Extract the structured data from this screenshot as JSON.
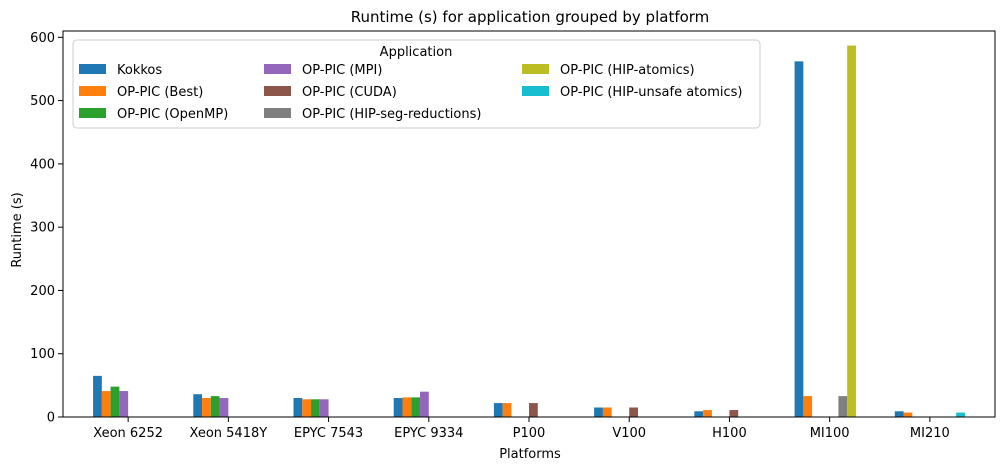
{
  "chart_data": {
    "type": "bar",
    "title": "Runtime (s) for application grouped by platform",
    "xlabel": "Platforms",
    "ylabel": "Runtime (s)",
    "ylim": [
      0,
      610
    ],
    "yticks": [
      0,
      100,
      200,
      300,
      400,
      500,
      600
    ],
    "grid": false,
    "legend_title": "Application",
    "legend_position": "top-left",
    "categories": [
      "Xeon 6252",
      "Xeon 5418Y",
      "EPYC 7543",
      "EPYC 9334",
      "P100",
      "V100",
      "H100",
      "MI100",
      "MI210"
    ],
    "series": [
      {
        "name": "Kokkos",
        "color": "#1f77b4",
        "values": [
          65,
          36,
          30,
          30,
          22,
          15,
          9,
          562,
          9
        ]
      },
      {
        "name": "OP-PIC (Best)",
        "color": "#ff7f0e",
        "values": [
          41,
          30,
          28,
          31,
          22,
          15,
          11,
          33,
          7
        ]
      },
      {
        "name": "OP-PIC (OpenMP)",
        "color": "#2ca02c",
        "values": [
          48,
          33,
          28,
          31,
          null,
          null,
          null,
          null,
          null
        ]
      },
      {
        "name": "OP-PIC (MPI)",
        "color": "#9467bd",
        "values": [
          41,
          30,
          28,
          40,
          null,
          null,
          null,
          null,
          null
        ]
      },
      {
        "name": "OP-PIC (CUDA)",
        "color": "#8c564b",
        "values": [
          null,
          null,
          null,
          null,
          22,
          15,
          11,
          null,
          null
        ]
      },
      {
        "name": "OP-PIC (HIP-seg-reductions)",
        "color": "#7f7f7f",
        "values": [
          null,
          null,
          null,
          null,
          null,
          null,
          null,
          33,
          null
        ]
      },
      {
        "name": "OP-PIC (HIP-atomics)",
        "color": "#bcbd22",
        "values": [
          null,
          null,
          null,
          null,
          null,
          null,
          null,
          587,
          null
        ]
      },
      {
        "name": "OP-PIC (HIP-unsafe atomics)",
        "color": "#17becf",
        "values": [
          null,
          null,
          null,
          null,
          null,
          null,
          null,
          null,
          7
        ]
      }
    ]
  }
}
